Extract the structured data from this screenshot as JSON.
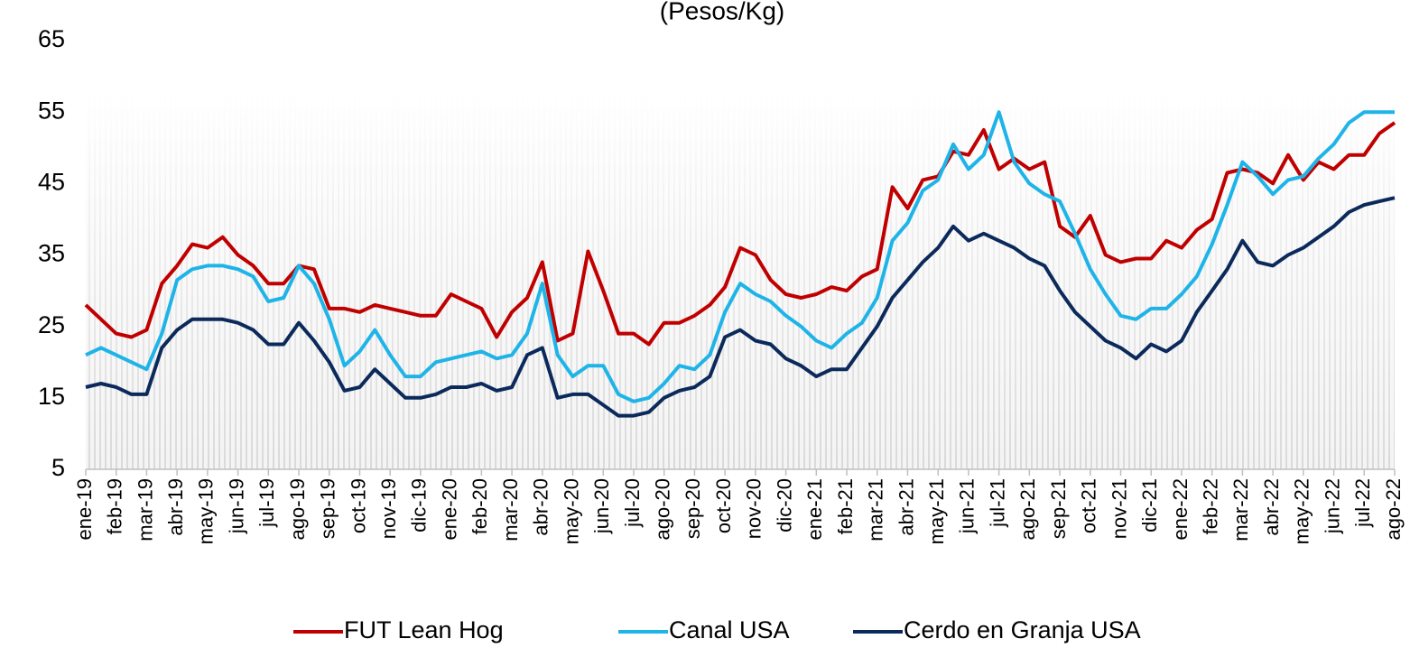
{
  "chart_data": {
    "type": "line",
    "title": "(Pesos/Kg)",
    "categories": [
      "ene-19",
      null,
      "feb-19",
      null,
      "mar-19",
      null,
      "abr-19",
      null,
      "may-19",
      null,
      "jun-19",
      null,
      "jul-19",
      null,
      "ago-19",
      null,
      "sep-19",
      null,
      "oct-19",
      null,
      "nov-19",
      null,
      "dic-19",
      null,
      "ene-20",
      null,
      "feb-20",
      null,
      "mar-20",
      null,
      "abr-20",
      null,
      "may-20",
      null,
      "jun-20",
      null,
      "jul-20",
      null,
      "ago-20",
      null,
      "sep-20",
      null,
      "oct-20",
      null,
      "nov-20",
      null,
      "dic-20",
      null,
      "ene-21",
      null,
      "feb-21",
      null,
      "mar-21",
      null,
      "abr-21",
      null,
      "may-21",
      null,
      "jun-21",
      null,
      "jul-21",
      null,
      "ago-21",
      null,
      "sep-21",
      null,
      "oct-21",
      null,
      "nov-21",
      null,
      "dic-21",
      null,
      "ene-22",
      null,
      "feb-22",
      null,
      "mar-22",
      null,
      "abr-22",
      null,
      "may-22",
      null,
      "jun-22",
      null,
      "jul-22",
      null,
      "ago-22"
    ],
    "series": [
      {
        "name": "FUT Lean Hog",
        "color": "#c00000",
        "values": [
          28,
          26,
          24,
          23.5,
          24.5,
          31,
          33.5,
          36.5,
          36,
          37.5,
          35,
          33.5,
          31,
          31,
          33.5,
          33,
          27.5,
          27.5,
          27,
          28,
          27.5,
          27,
          26.5,
          26.5,
          29.5,
          28.5,
          27.5,
          23.5,
          27,
          29,
          34,
          23,
          24,
          35.5,
          30,
          24,
          24,
          22.5,
          25.5,
          25.5,
          26.5,
          28,
          30.5,
          36,
          35,
          31.5,
          29.5,
          29,
          29.5,
          30.5,
          30,
          32,
          33,
          44.5,
          41.5,
          45.5,
          46,
          49.5,
          49,
          52.5,
          47,
          48.5,
          47,
          48,
          39,
          37.5,
          40.5,
          35,
          34,
          34.5,
          34.5,
          37,
          36,
          38.5,
          40,
          46.5,
          47,
          46.5,
          45,
          49,
          45.5,
          48,
          47,
          49,
          49,
          52,
          53.5
        ]
      },
      {
        "name": "Canal USA",
        "color": "#1fb4e8",
        "values": [
          21,
          22,
          21,
          20,
          19,
          24,
          31.5,
          33,
          33.5,
          33.5,
          33,
          32,
          28.5,
          29,
          33.5,
          31,
          26,
          19.5,
          21.5,
          24.5,
          21,
          18,
          18,
          20,
          20.5,
          21,
          21.5,
          20.5,
          21,
          24,
          31,
          21,
          18,
          19.5,
          19.5,
          15.5,
          14.5,
          15,
          17,
          19.5,
          19,
          21,
          27,
          31,
          29.5,
          28.5,
          26.5,
          25,
          23,
          22,
          24,
          25.5,
          29,
          37,
          39.5,
          44,
          45.5,
          50.5,
          47,
          49,
          55,
          48,
          45,
          43.5,
          42.5,
          38,
          33,
          29.5,
          26.5,
          26,
          27.5,
          27.5,
          29.5,
          32,
          36.5,
          42,
          48,
          46,
          43.5,
          45.5,
          46,
          48.5,
          50.5,
          53.5,
          55,
          55,
          55
        ]
      },
      {
        "name": "Cerdo en Granja USA",
        "color": "#0b2a5b",
        "values": [
          16.5,
          17,
          16.5,
          15.5,
          15.5,
          22,
          24.5,
          26,
          26,
          26,
          25.5,
          24.5,
          22.5,
          22.5,
          25.5,
          23,
          20,
          16,
          16.5,
          19,
          17,
          15,
          15,
          15.5,
          16.5,
          16.5,
          17,
          16,
          16.5,
          21,
          22,
          15,
          15.5,
          15.5,
          14,
          12.5,
          12.5,
          13,
          15,
          16,
          16.5,
          18,
          23.5,
          24.5,
          23,
          22.5,
          20.5,
          19.5,
          18,
          19,
          19,
          22,
          25,
          29,
          31.5,
          34,
          36,
          39,
          37,
          38,
          37,
          36,
          34.5,
          33.5,
          30,
          27,
          25,
          23,
          22,
          20.5,
          22.5,
          21.5,
          23,
          27,
          30,
          33,
          37,
          34,
          33.5,
          35,
          36,
          37.5,
          39,
          41,
          42,
          42.5,
          43
        ]
      }
    ],
    "ylim": [
      5,
      65
    ],
    "yticks": [
      5,
      15,
      25,
      35,
      45,
      55,
      65
    ],
    "legend": "bottom"
  }
}
